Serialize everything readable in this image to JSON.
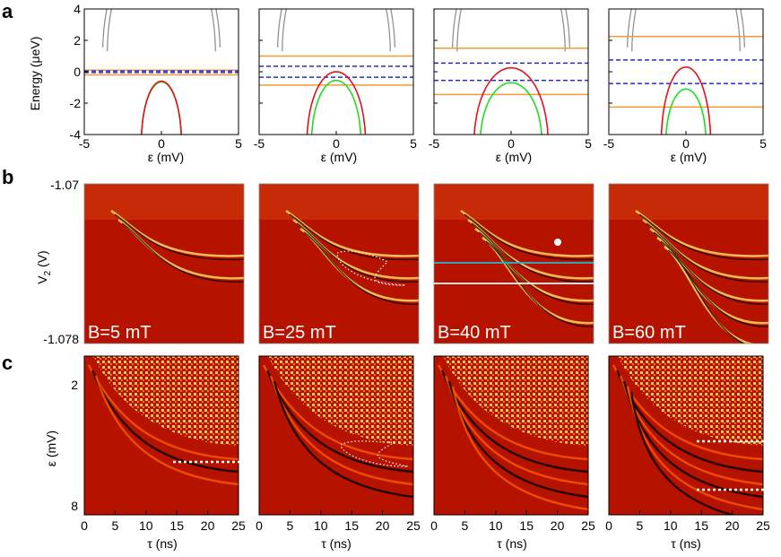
{
  "panel_letters": {
    "a": "a",
    "b": "b",
    "c": "c"
  },
  "chart_data": [
    {
      "panel": "a",
      "type": "line",
      "ylabel": "Energy (μeV)",
      "xlabel": "ε (mV)",
      "xlim": [
        -5,
        5
      ],
      "ylim": [
        -4,
        4
      ],
      "xticks": [
        "-5",
        "0",
        "5"
      ],
      "yticks": [
        "-4",
        "-2",
        "0",
        "2",
        "4"
      ],
      "subplots": [
        {
          "orange_levels": [
            0.1,
            -0.2
          ],
          "blue_dashed_levels": [
            0.05,
            -0.05
          ],
          "red": {
            "peak": -0.6,
            "halfwidth": 1.3
          },
          "green": {
            "peak": -0.65,
            "halfwidth": 1.3
          },
          "grey_edges": [
            3.5,
            3.8
          ]
        },
        {
          "orange_levels": [
            1.0,
            -0.85
          ],
          "blue_dashed_levels": [
            0.35,
            -0.35
          ],
          "red": {
            "peak": 0.0,
            "halfwidth": 1.9
          },
          "green": {
            "peak": -0.55,
            "halfwidth": 1.6
          },
          "grey_edges": [
            3.5,
            3.8
          ]
        },
        {
          "orange_levels": [
            1.5,
            -1.45
          ],
          "blue_dashed_levels": [
            0.55,
            -0.55
          ],
          "red": {
            "peak": 0.25,
            "halfwidth": 2.4
          },
          "green": {
            "peak": -0.7,
            "halfwidth": 2.0
          },
          "grey_edges": [
            3.5,
            3.8
          ]
        },
        {
          "orange_levels": [
            2.25,
            -2.25
          ],
          "blue_dashed_levels": [
            0.75,
            -0.75
          ],
          "red": {
            "peak": 0.3,
            "halfwidth": 1.6
          },
          "green": {
            "peak": -1.1,
            "halfwidth": 1.3
          },
          "grey_edges": [
            3.5,
            3.8
          ]
        }
      ]
    },
    {
      "panel": "b",
      "type": "heatmap",
      "ylabel": "V2 (V)",
      "ylabel_main": "V",
      "ylabel_sub": "2",
      "ylabel_unit": "(V)",
      "yticks": [
        "-1.07",
        "-1.078"
      ],
      "ylim": [
        -1.078,
        -1.07
      ],
      "maps": [
        {
          "label": "B=5 mT"
        },
        {
          "label": "B=25 mT"
        },
        {
          "label": "B=40 mT"
        },
        {
          "label": "B=60 mT"
        }
      ]
    },
    {
      "panel": "c",
      "type": "heatmap",
      "ylabel": "ε (mV)",
      "xlabel": "τ (ns)",
      "xlim": [
        0,
        25
      ],
      "xticks": [
        "0",
        "5",
        "10",
        "15",
        "20",
        "25"
      ],
      "yticks": [
        "2",
        "8"
      ],
      "maps": [
        {},
        {},
        {},
        {}
      ]
    }
  ],
  "colors": {
    "orange": "#f39a33",
    "blue": "#2a2ad0",
    "red": "#e0141e",
    "green": "#22dc22",
    "grey": "#8a8a8a",
    "map_dark": "#5c0000",
    "map_mid": "#b51200",
    "map_bright": "#ffe866"
  }
}
